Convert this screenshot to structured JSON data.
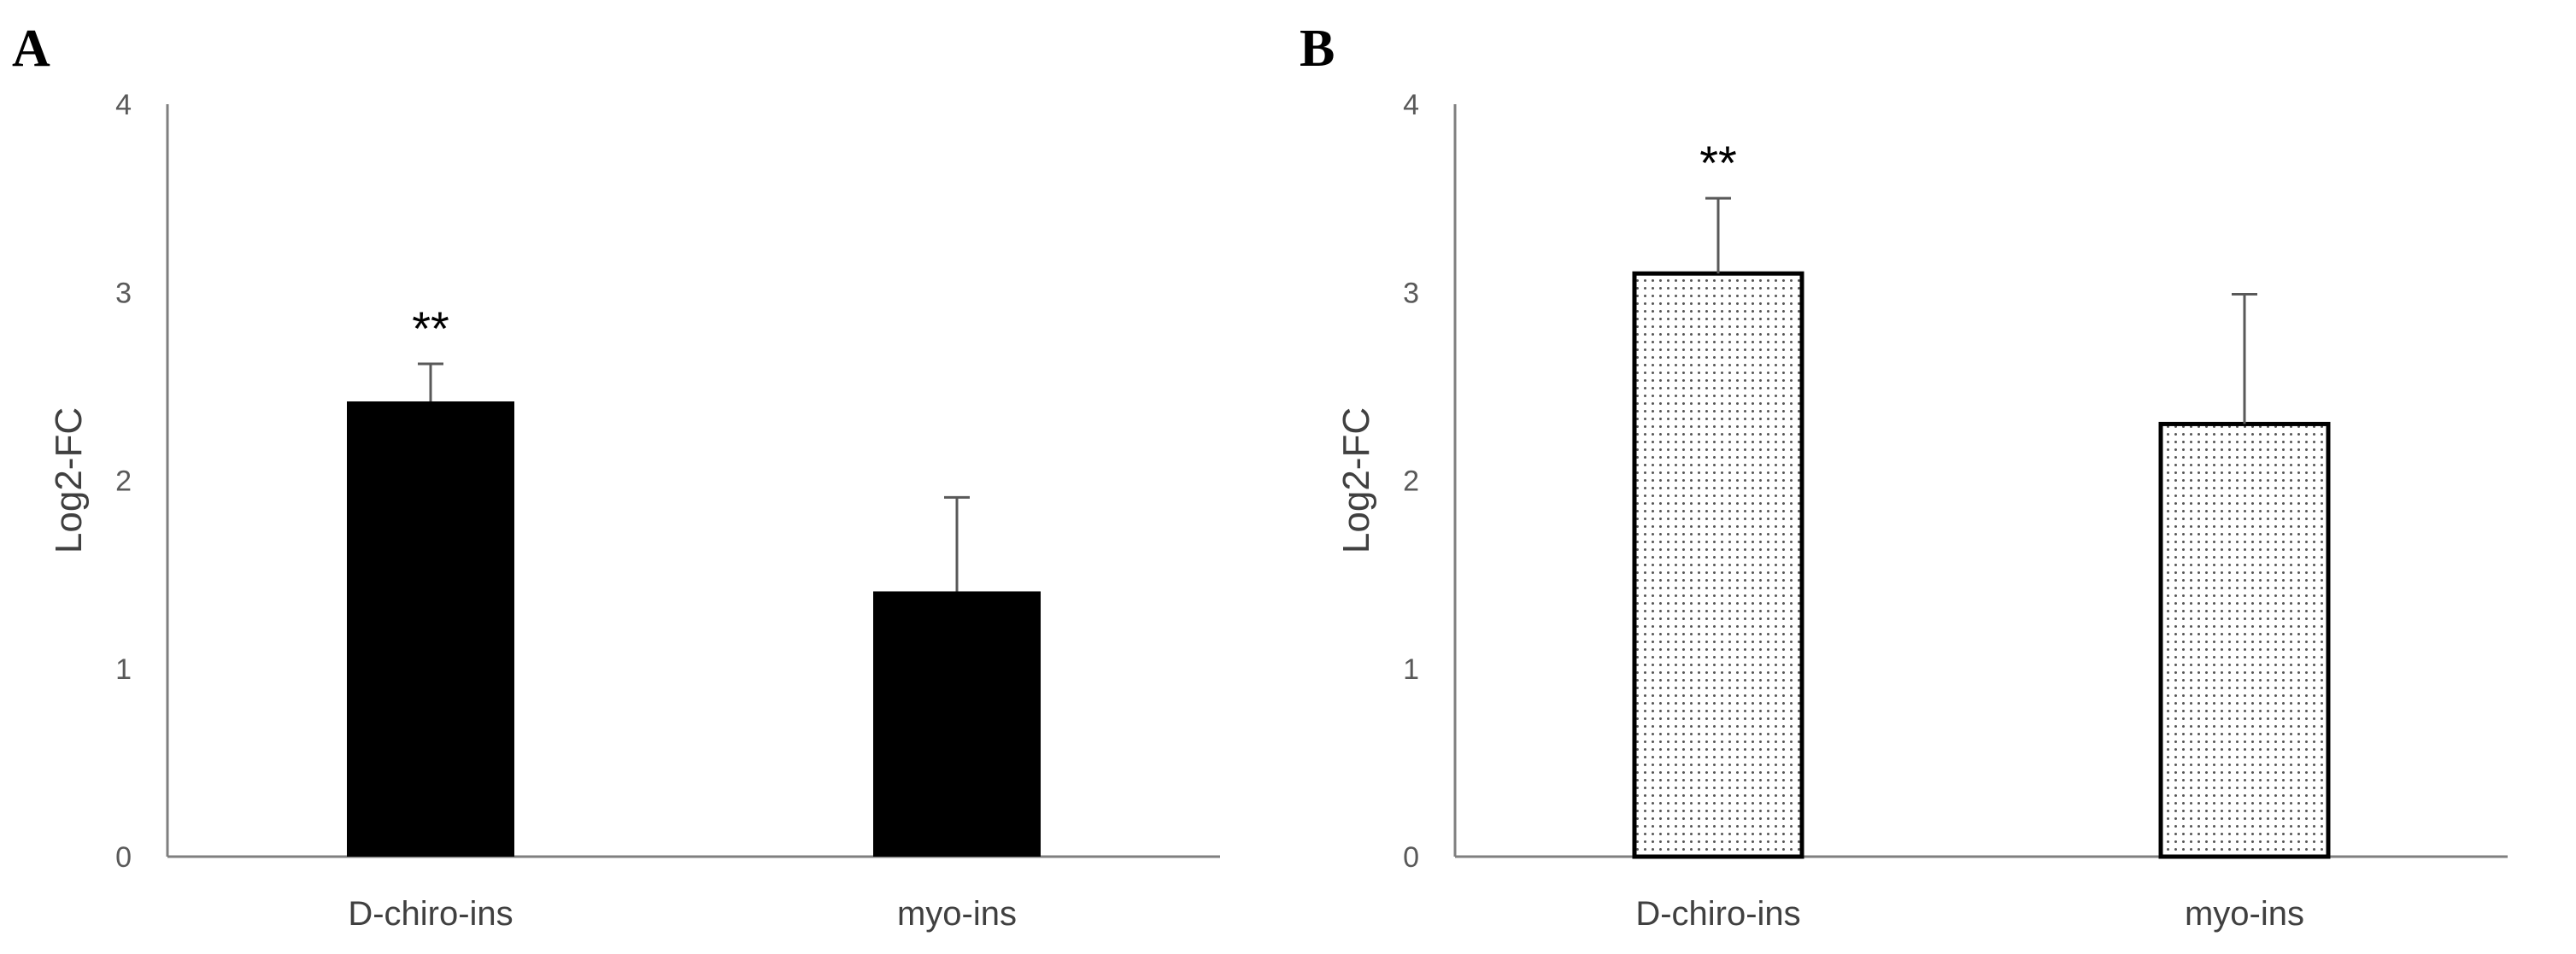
{
  "chart_data": [
    {
      "panel": "A",
      "type": "bar",
      "categories": [
        "D-chiro-ins",
        "myo-ins"
      ],
      "values": [
        2.42,
        1.41
      ],
      "errors": [
        0.2,
        0.5
      ],
      "annotations": [
        "**",
        ""
      ],
      "ylabel": "Log2-FC",
      "xlabel": "",
      "ylim": [
        0,
        4
      ],
      "yticks": [
        "0",
        "1",
        "2",
        "3",
        "4"
      ],
      "fill": "#000000",
      "pattern": "solid",
      "grid": false
    },
    {
      "panel": "B",
      "type": "bar",
      "categories": [
        "D-chiro-ins",
        "myo-ins"
      ],
      "values": [
        3.1,
        2.3
      ],
      "errors": [
        0.4,
        0.69
      ],
      "annotations": [
        "**",
        ""
      ],
      "ylabel": "Log2-FC",
      "xlabel": "",
      "ylim": [
        0,
        4
      ],
      "yticks": [
        "0",
        "1",
        "2",
        "3",
        "4"
      ],
      "fill": "#ffffff",
      "pattern": "dotted",
      "grid": false
    }
  ]
}
